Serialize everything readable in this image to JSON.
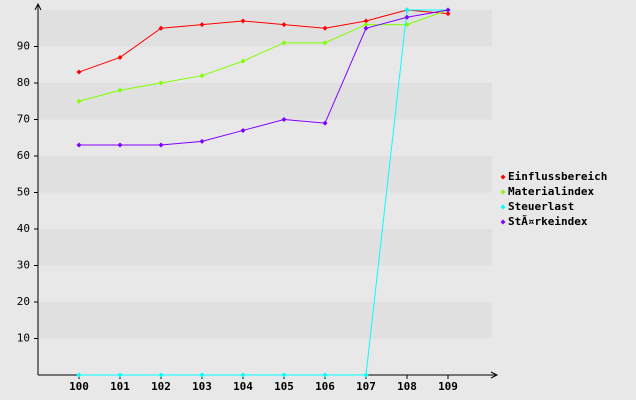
{
  "chart_data": {
    "type": "line",
    "categories": [
      "100",
      "101",
      "102",
      "103",
      "104",
      "105",
      "106",
      "107",
      "108",
      "109"
    ],
    "series": [
      {
        "name": "Einflussbereich",
        "color": "#ff0000",
        "values": [
          83,
          87,
          95,
          96,
          97,
          96,
          95,
          97,
          100,
          99
        ]
      },
      {
        "name": "Materialindex",
        "color": "#80ff00",
        "values": [
          75,
          78,
          80,
          82,
          86,
          91,
          91,
          96,
          96,
          100
        ]
      },
      {
        "name": "Steuerlast",
        "color": "#00ffff",
        "values": [
          0,
          0,
          0,
          0,
          0,
          0,
          0,
          0,
          100,
          100
        ]
      },
      {
        "name": "StÃ¤rkeindex",
        "color": "#8000ff",
        "values": [
          63,
          63,
          63,
          64,
          67,
          70,
          69,
          95,
          98,
          100
        ]
      }
    ],
    "ylim": [
      0,
      100
    ],
    "yticks": [
      10,
      20,
      30,
      40,
      50,
      60,
      70,
      80,
      90
    ],
    "grid": true,
    "legend": "right"
  }
}
